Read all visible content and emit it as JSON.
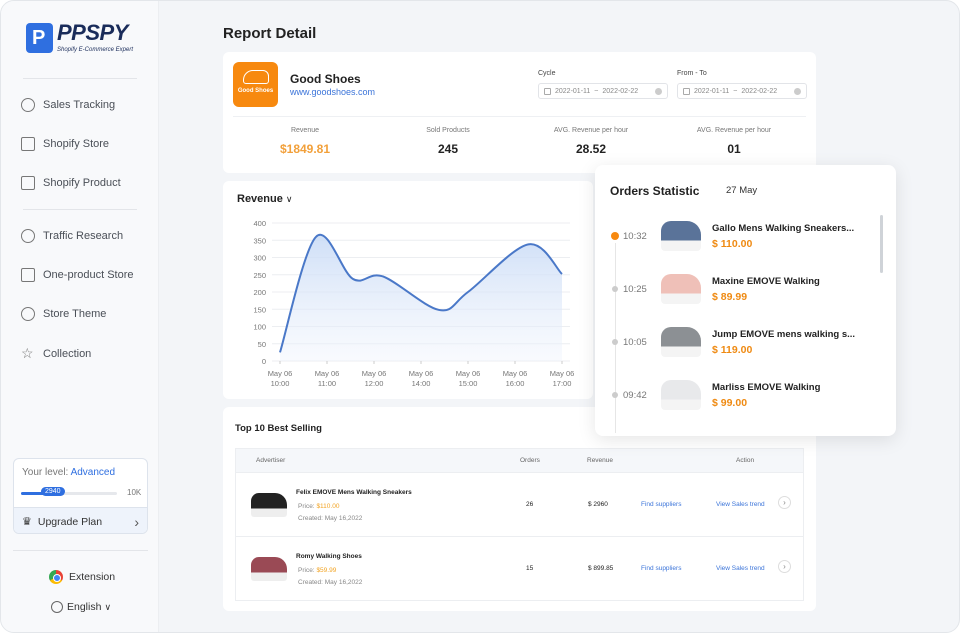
{
  "brand": {
    "name": "PPSPY",
    "tagline": "Shopify E-Commerce Expert"
  },
  "sidebar": {
    "items": [
      {
        "label": "Sales Tracking",
        "icon": "target-icon"
      },
      {
        "label": "Shopify Store",
        "icon": "store-icon"
      },
      {
        "label": "Shopify Product",
        "icon": "box-icon"
      },
      {
        "label": "Traffic Research",
        "icon": "pie-chart-icon"
      },
      {
        "label": "One-product Store",
        "icon": "home-icon"
      },
      {
        "label": "Store Theme",
        "icon": "palette-icon"
      },
      {
        "label": "Collection",
        "icon": "star-icon"
      }
    ],
    "level": {
      "label": "Your level:",
      "value": "Advanced",
      "progress": 2940,
      "progress_label": "2940",
      "max_label": "10K",
      "max": 10000
    },
    "upgrade": "Upgrade Plan",
    "extension": "Extension",
    "language": "English"
  },
  "page": {
    "title": "Report Detail"
  },
  "store": {
    "logo_text": "Good Shoes",
    "name": "Good Shoes",
    "url": "www.goodshoes.com",
    "cycle": {
      "label": "Cycle",
      "start": "2022-01-11",
      "end": "2022-02-22",
      "sep": "~"
    },
    "range": {
      "label": "From - To",
      "start": "2022-01-11",
      "end": "2022-02-22",
      "sep": "~"
    },
    "stats": [
      {
        "label": "Revenue",
        "value": "$1849.81"
      },
      {
        "label": "Sold Products",
        "value": "245"
      },
      {
        "label": "AVG. Revenue per hour",
        "value": "28.52"
      },
      {
        "label": "AVG. Revenue per hour",
        "value": "01"
      }
    ]
  },
  "chart_data": {
    "type": "area",
    "title": "Revenue",
    "dropdown": true,
    "categories": [
      "May 06\n10:00",
      "May 06\n11:00",
      "May 06\n12:00",
      "May 06\n14:00",
      "May 06\n15:00",
      "May 06\n16:00",
      "May 06\n17:00"
    ],
    "tick_times": [
      "10:00",
      "11:00",
      "12:00",
      "14:00",
      "15:00",
      "16:00",
      "17:00"
    ],
    "points": [
      {
        "t": "10:00",
        "v": 25
      },
      {
        "t": "10:46",
        "v": 360
      },
      {
        "t": "11:33",
        "v": 238
      },
      {
        "t": "12:23",
        "v": 245
      },
      {
        "t": "14:23",
        "v": 148
      },
      {
        "t": "15:00",
        "v": 200
      },
      {
        "t": "16:17",
        "v": 338
      },
      {
        "t": "17:00",
        "v": 252
      }
    ],
    "ylim": [
      0,
      400
    ],
    "yticks": [
      0,
      50,
      100,
      150,
      200,
      250,
      300,
      350,
      400
    ],
    "grid": true,
    "color": "#4a78c8"
  },
  "orders": {
    "title": "Orders Statistic",
    "date": "27 May",
    "items": [
      {
        "time": "10:32",
        "name": "Gallo Mens Walking Sneakers...",
        "price": "$ 110.00",
        "active": true,
        "shoe_color": "#5a7399"
      },
      {
        "time": "10:25",
        "name": "Maxine EMOVE Walking",
        "price": "$ 89.99",
        "active": false,
        "shoe_color": "#efc0b8"
      },
      {
        "time": "10:05",
        "name": "Jump EMOVE mens walking s...",
        "price": "$ 119.00",
        "active": false,
        "shoe_color": "#8c9094"
      },
      {
        "time": "09:42",
        "name": "Marliss EMOVE Walking",
        "price": "$ 99.00",
        "active": false,
        "shoe_color": "#e8e9eb"
      }
    ]
  },
  "best": {
    "title": "Top 10 Best Selling",
    "headers": {
      "advertiser": "Advertiser",
      "orders": "Orders",
      "revenue": "Revenue",
      "action": "Action"
    },
    "rows": [
      {
        "name": "Felix EMOVE Mens Walking Sneakers",
        "price_label": "Price:",
        "price": "$110.00",
        "created_label": "Created:",
        "created": "May 16,2022",
        "orders": "26",
        "revenue": "$ 2960",
        "find": "Find suppliers",
        "trend": "View Sales trend",
        "shoe_color": "#222"
      },
      {
        "name": "Romy Walking Shoes",
        "price_label": "Price:",
        "price": "$59.99",
        "created_label": "Created:",
        "created": "May 16,2022",
        "orders": "15",
        "revenue": "$ 899.85",
        "find": "Find suppliers",
        "trend": "View Sales trend",
        "shoe_color": "#9a4a55"
      }
    ]
  },
  "colors": {
    "accent": "#2f6fe0",
    "orange": "#f7890f",
    "link": "#3b74d9"
  }
}
